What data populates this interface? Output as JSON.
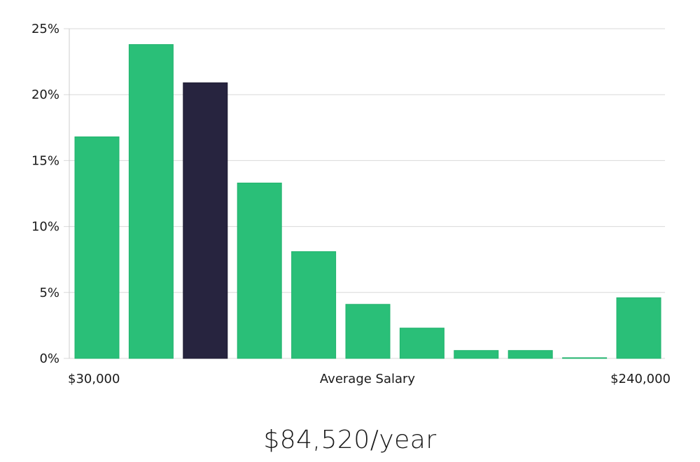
{
  "chart_data": {
    "type": "bar",
    "title": "",
    "xlabel": "Average Salary",
    "ylabel": "",
    "x_start_label": "$30,000",
    "x_end_label": "$240,000",
    "ylim": [
      0,
      25
    ],
    "yticks": [
      "0%",
      "5%",
      "10%",
      "15%",
      "20%",
      "25%"
    ],
    "ytick_values": [
      0,
      5,
      10,
      15,
      20,
      25
    ],
    "values": [
      16.8,
      23.8,
      20.9,
      13.3,
      8.1,
      4.1,
      2.3,
      0.6,
      0.6,
      0.05,
      4.6
    ],
    "highlight_index": 2,
    "colors": {
      "bar": "#2abf78",
      "highlight": "#27243f",
      "grid": "#d9d9d9",
      "axis": "#cccccc"
    }
  },
  "salary_display": "$84,520/year"
}
